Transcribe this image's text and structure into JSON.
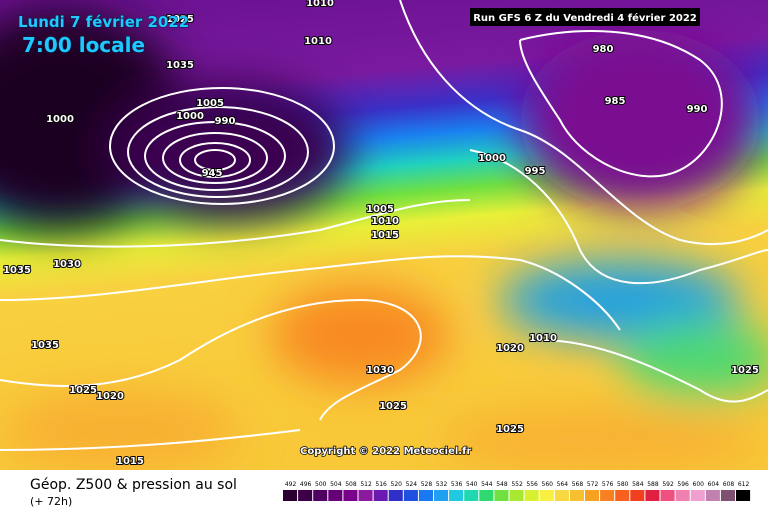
{
  "header": {
    "date": "Lundi 7 février 2022",
    "time": "7:00 locale",
    "run": "Run GFS 6 Z du Vendredi 4 février 2022"
  },
  "isobar_labels": [
    1010,
    1025,
    1010,
    1035,
    1000,
    1005,
    1000,
    990,
    945,
    980,
    985,
    990,
    1000,
    995,
    1005,
    1010,
    1015,
    1035,
    1030,
    1035,
    1030,
    1020,
    1010,
    1025,
    1025,
    1020,
    1025,
    1025,
    1015
  ],
  "copyright": "Copyright © 2022 Meteociel.fr",
  "footer": {
    "title": "Géop. Z500 & pression au sol",
    "lead": "(+ 72h)"
  },
  "scale": {
    "labels": [
      492,
      496,
      500,
      504,
      508,
      512,
      516,
      520,
      524,
      528,
      532,
      536,
      540,
      544,
      548,
      552,
      556,
      560,
      564,
      568,
      572,
      576,
      580,
      584,
      588,
      592,
      596,
      600,
      604,
      608,
      612
    ],
    "colors": [
      "#2b0030",
      "#3d0048",
      "#500060",
      "#660077",
      "#7a008c",
      "#8c1aa0",
      "#6a1ab0",
      "#3030c8",
      "#2050e0",
      "#1a78f0",
      "#20a0f0",
      "#20c8e0",
      "#20d8b0",
      "#30d870",
      "#70e040",
      "#a8e830",
      "#d8f030",
      "#f8f040",
      "#f8d840",
      "#f8c030",
      "#f8a020",
      "#f88020",
      "#f86020",
      "#f04020",
      "#e02040",
      "#f05080",
      "#f080b0",
      "#f0a0d0",
      "#c080b0",
      "#805070",
      "#000000"
    ]
  }
}
